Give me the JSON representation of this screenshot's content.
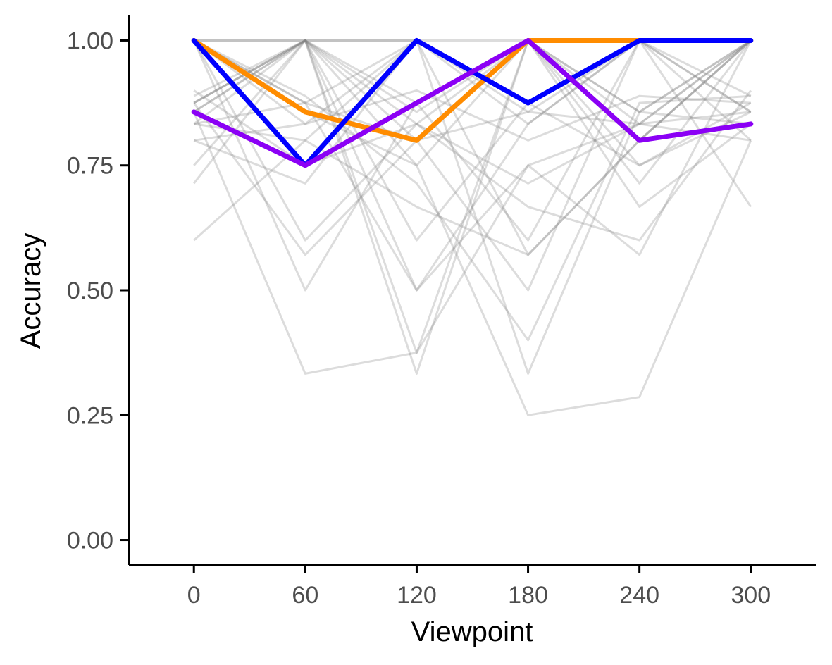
{
  "chart_data": {
    "type": "line",
    "xlabel": "Viewpoint",
    "ylabel": "Accuracy",
    "x": [
      0,
      60,
      120,
      180,
      240,
      300
    ],
    "x_tick_labels": [
      "0",
      "60",
      "120",
      "180",
      "240",
      "300"
    ],
    "y_tick_values": [
      0,
      0.25,
      0.5,
      0.75,
      1
    ],
    "y_tick_labels": [
      "0.00",
      "0.25",
      "0.50",
      "0.75",
      "1.00"
    ],
    "xlim": [
      -35,
      335
    ],
    "ylim": [
      -0.05,
      1.05
    ],
    "grid": false,
    "legend": "none",
    "background_series_color": "#808080",
    "background_series": [
      {
        "values": [
          1.0,
          1.0,
          1.0,
          1.0,
          1.0,
          1.0
        ]
      },
      {
        "values": [
          1.0,
          1.0,
          0.875,
          1.0,
          0.857,
          1.0
        ]
      },
      {
        "values": [
          0.875,
          1.0,
          0.857,
          1.0,
          0.857,
          0.833
        ]
      },
      {
        "values": [
          1.0,
          0.833,
          1.0,
          0.857,
          1.0,
          1.0
        ]
      },
      {
        "values": [
          0.857,
          1.0,
          0.833,
          1.0,
          0.833,
          0.8
        ]
      },
      {
        "values": [
          0.833,
          0.8,
          1.0,
          0.875,
          1.0,
          0.857
        ]
      },
      {
        "values": [
          0.75,
          1.0,
          0.75,
          1.0,
          0.714,
          1.0
        ]
      },
      {
        "values": [
          1.0,
          0.875,
          1.0,
          0.833,
          1.0,
          0.667
        ]
      },
      {
        "values": [
          0.714,
          1.0,
          0.5,
          0.75,
          0.833,
          1.0
        ]
      },
      {
        "values": [
          0.875,
          1.0,
          0.333,
          1.0,
          0.8,
          1.0
        ]
      },
      {
        "values": [
          0.833,
          1.0,
          0.8,
          0.5,
          1.0,
          0.857
        ]
      },
      {
        "values": [
          0.6,
          0.8,
          0.667,
          0.571,
          0.8,
          1.0
        ]
      },
      {
        "values": [
          0.875,
          0.571,
          0.8,
          1.0,
          0.75,
          0.875
        ]
      },
      {
        "values": [
          1.0,
          0.5,
          0.875,
          0.6,
          1.0,
          0.8
        ]
      },
      {
        "values": [
          0.8,
          0.714,
          1.0,
          0.333,
          0.857,
          1.0
        ]
      },
      {
        "values": [
          0.857,
          0.333,
          0.375,
          1.0,
          0.667,
          0.833
        ]
      },
      {
        "values": [
          1.0,
          0.857,
          0.75,
          0.25,
          0.286,
          0.8
        ]
      },
      {
        "values": [
          0.889,
          1.0,
          0.375,
          0.75,
          0.571,
          1.0
        ]
      },
      {
        "values": [
          1.0,
          0.889,
          0.714,
          0.4,
          0.875,
          0.889
        ]
      },
      {
        "values": [
          0.9,
          0.75,
          0.833,
          0.667,
          0.6,
          0.9
        ]
      },
      {
        "values": [
          0.857,
          1.0,
          0.6,
          0.875,
          0.75,
          0.857
        ]
      },
      {
        "values": [
          1.0,
          0.6,
          0.833,
          0.714,
          0.833,
          1.0
        ]
      },
      {
        "values": [
          0.8,
          0.833,
          0.9,
          0.8,
          0.889,
          0.875
        ]
      },
      {
        "values": [
          0.833,
          0.875,
          0.8,
          0.857,
          0.833,
          0.857
        ]
      },
      {
        "values": [
          1.0,
          0.875,
          0.5,
          0.833,
          1.0,
          0.889
        ]
      },
      {
        "values": [
          0.875,
          1.0,
          1.0,
          0.571,
          0.8,
          1.0
        ]
      }
    ],
    "highlight_series": [
      {
        "color": "#FF8C00",
        "values": [
          1.0,
          0.857,
          0.8,
          1.0,
          1.0,
          1.0
        ]
      },
      {
        "color": "#0000FF",
        "values": [
          1.0,
          0.75,
          1.0,
          0.875,
          1.0,
          1.0
        ]
      },
      {
        "color": "#8B00F5",
        "values": [
          0.857,
          0.75,
          0.875,
          1.0,
          0.8,
          0.833
        ]
      }
    ]
  }
}
